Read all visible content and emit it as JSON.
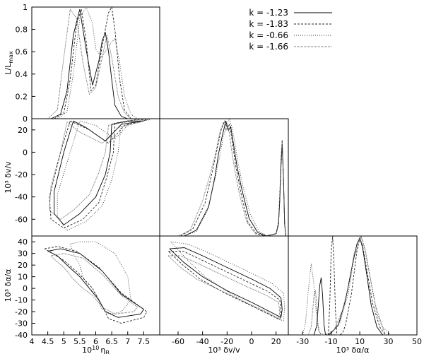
{
  "legend": {
    "items": [
      {
        "label": "k = -1.23",
        "color": "#000000",
        "dash": ""
      },
      {
        "label": "k = -1.83",
        "color": "#222222",
        "dash": "3,2"
      },
      {
        "label": "k = -0.66",
        "color": "#333333",
        "dash": "1,2"
      },
      {
        "label": "k = -1.66",
        "color": "#555555",
        "dash": "1,1"
      }
    ]
  },
  "chart_data": [
    {
      "id": "eta-1d",
      "type": "line",
      "xlabel": "",
      "ylabel": "L/L",
      "ylabel_sub": "max",
      "xlim": [
        4,
        8
      ],
      "ylim": [
        0,
        1
      ],
      "yticks": [
        "0",
        "0.2",
        "0.4",
        "0.6",
        "0.8",
        "1"
      ],
      "series": [
        {
          "name": "k = -1.23",
          "x": [
            4.6,
            4.9,
            5.1,
            5.3,
            5.5,
            5.7,
            5.9,
            6.1,
            6.2,
            6.3,
            6.4,
            6.5,
            6.6,
            6.8,
            7.0
          ],
          "y": [
            0,
            0.04,
            0.25,
            0.75,
            0.98,
            0.62,
            0.3,
            0.52,
            0.7,
            0.77,
            0.6,
            0.35,
            0.12,
            0.02,
            0
          ]
        },
        {
          "name": "k = -1.83",
          "x": [
            4.7,
            5.0,
            5.2,
            5.4,
            5.55,
            5.7,
            5.85,
            6.0,
            6.2,
            6.4,
            6.5,
            6.6,
            6.75,
            6.9,
            7.1
          ],
          "y": [
            0,
            0.05,
            0.35,
            0.85,
            0.98,
            0.7,
            0.25,
            0.3,
            0.65,
            0.95,
            1.0,
            0.8,
            0.35,
            0.08,
            0
          ]
        },
        {
          "name": "k = -0.66",
          "x": [
            4.8,
            5.1,
            5.3,
            5.5,
            5.7,
            5.9,
            6.0,
            6.2,
            6.4,
            6.6,
            6.75,
            6.9,
            7.1,
            7.3
          ],
          "y": [
            0,
            0.06,
            0.4,
            0.9,
            1.0,
            0.85,
            0.62,
            0.55,
            0.65,
            0.72,
            0.5,
            0.2,
            0.04,
            0
          ]
        },
        {
          "name": "k = -1.66",
          "x": [
            4.5,
            4.8,
            5.0,
            5.2,
            5.4,
            5.6,
            5.8,
            6.0,
            6.2,
            6.35,
            6.5,
            6.7,
            6.9,
            7.1
          ],
          "y": [
            0,
            0.08,
            0.55,
            0.98,
            0.9,
            0.5,
            0.22,
            0.28,
            0.55,
            0.75,
            0.55,
            0.2,
            0.05,
            0
          ]
        }
      ]
    },
    {
      "id": "dv-vs-eta",
      "type": "line",
      "xlabel": "",
      "ylabel": "10³ δv/v",
      "xlim": [
        4,
        8
      ],
      "ylim": [
        -75,
        30
      ],
      "yticks": [
        "20",
        "0",
        "-20",
        "-40",
        "-60"
      ],
      "series": [
        {
          "name": "k = -1.23",
          "x": [
            5.3,
            5.7,
            6.3,
            6.8,
            7.5,
            7.0,
            6.5,
            6.45,
            6.3,
            6.0,
            5.5,
            5.0,
            4.7,
            4.7,
            5.0,
            5.3
          ],
          "y": [
            28,
            22,
            10,
            25,
            28,
            28,
            25,
            0,
            -20,
            -40,
            -55,
            -65,
            -55,
            -35,
            0,
            28
          ]
        },
        {
          "name": "k = -1.83",
          "x": [
            5.2,
            5.8,
            6.4,
            6.9,
            7.6,
            7.2,
            6.6,
            6.55,
            6.35,
            6.1,
            5.6,
            5.0,
            4.6,
            4.55,
            4.9,
            5.2
          ],
          "y": [
            28,
            20,
            8,
            24,
            29,
            29,
            26,
            0,
            -22,
            -45,
            -60,
            -68,
            -60,
            -40,
            0,
            28
          ]
        },
        {
          "name": "k = -0.66",
          "x": [
            5.5,
            6.0,
            6.6,
            7.1,
            7.7,
            7.3,
            6.8,
            6.7,
            6.5,
            6.2,
            5.7,
            5.1,
            4.8,
            4.8,
            5.2,
            5.5
          ],
          "y": [
            28,
            24,
            12,
            27,
            29,
            29,
            26,
            0,
            -25,
            -48,
            -62,
            -70,
            -58,
            -38,
            0,
            28
          ]
        },
        {
          "name": "k = -1.66",
          "x": [
            5.1,
            5.5,
            6.2,
            6.7,
            7.4,
            6.9,
            6.4,
            6.3,
            6.1,
            5.8,
            5.3,
            4.9,
            4.55,
            4.6,
            4.9,
            5.1
          ],
          "y": [
            27,
            18,
            8,
            22,
            27,
            27,
            24,
            0,
            -18,
            -38,
            -52,
            -60,
            -52,
            -30,
            0,
            27
          ]
        }
      ]
    },
    {
      "id": "da-vs-eta",
      "type": "line",
      "xlabel": "10",
      "xlabel_sup": "10",
      "xlabel_greek": "η",
      "xlabel_sub": "B",
      "ylabel": "10³ δα/α",
      "xlim": [
        4,
        8
      ],
      "ylim": [
        -40,
        45
      ],
      "xticks": [
        "4",
        "4.5",
        "5",
        "5.5",
        "6",
        "6.5",
        "7",
        "7.5"
      ],
      "yticks": [
        "40",
        "30",
        "20",
        "10",
        "0",
        "-10",
        "-20",
        "-30",
        "-40"
      ],
      "series": [
        {
          "name": "k = -1.23",
          "x": [
            4.5,
            4.9,
            5.5,
            6.2,
            6.8,
            7.5,
            7.4,
            6.7,
            6.3,
            6.1,
            5.8,
            5.5,
            5.1,
            4.8,
            4.5
          ],
          "y": [
            32,
            34,
            30,
            15,
            -5,
            -18,
            -22,
            -25,
            -20,
            -10,
            0,
            10,
            20,
            28,
            32
          ]
        },
        {
          "name": "k = -1.83",
          "x": [
            4.4,
            4.8,
            5.4,
            6.1,
            6.8,
            7.6,
            7.5,
            6.8,
            6.4,
            6.2,
            5.9,
            5.5,
            5.0,
            4.6,
            4.4
          ],
          "y": [
            34,
            36,
            32,
            18,
            -4,
            -20,
            -25,
            -30,
            -26,
            -15,
            0,
            12,
            24,
            31,
            34
          ]
        },
        {
          "name": "k = -0.66",
          "x": [
            5.5,
            6.0,
            6.6,
            7.0,
            7.1,
            6.8,
            6.5,
            6.2,
            6.0,
            5.8,
            5.6,
            5.5,
            5.3,
            5.2,
            5.5
          ],
          "y": [
            40,
            40,
            30,
            10,
            -10,
            -20,
            -22,
            -18,
            -5,
            0,
            10,
            20,
            30,
            38,
            40
          ]
        },
        {
          "name": "k = -1.66",
          "x": [
            4.6,
            5.0,
            5.6,
            6.2,
            6.8,
            7.3,
            7.2,
            6.6,
            6.2,
            5.9,
            5.6,
            5.3,
            5.0,
            4.7,
            4.6
          ],
          "y": [
            28,
            30,
            26,
            12,
            -6,
            -16,
            -20,
            -22,
            -16,
            -6,
            0,
            8,
            18,
            25,
            28
          ]
        }
      ]
    },
    {
      "id": "dv-1d",
      "type": "line",
      "xlabel": "",
      "ylabel": "",
      "xlim": [
        -75,
        30
      ],
      "ylim": [
        0,
        1
      ],
      "series": [
        {
          "name": "k = -1.23",
          "x": [
            -55,
            -45,
            -35,
            -30,
            -27,
            -24,
            -21,
            -19,
            -17,
            -15,
            -12,
            -8,
            -2,
            5,
            12,
            20,
            22,
            23,
            24,
            25,
            26,
            27,
            28
          ],
          "y": [
            0,
            0.05,
            0.25,
            0.5,
            0.7,
            0.85,
            0.98,
            0.9,
            0.93,
            0.8,
            0.6,
            0.4,
            0.15,
            0.03,
            0,
            0.02,
            0.1,
            0.3,
            0.6,
            0.78,
            0.5,
            0.1,
            0
          ]
        },
        {
          "name": "k = -1.83",
          "x": [
            -58,
            -48,
            -38,
            -32,
            -28,
            -25,
            -22,
            -20,
            -18,
            -16,
            -13,
            -9,
            -3,
            4,
            12,
            20,
            22,
            23,
            24,
            25,
            26,
            27,
            28
          ],
          "y": [
            0,
            0.06,
            0.28,
            0.55,
            0.75,
            0.9,
            0.98,
            0.92,
            0.95,
            0.82,
            0.6,
            0.38,
            0.12,
            0.02,
            0,
            0.02,
            0.12,
            0.35,
            0.65,
            0.82,
            0.5,
            0.1,
            0
          ]
        },
        {
          "name": "k = -0.66",
          "x": [
            -55,
            -45,
            -36,
            -30,
            -26,
            -23,
            -20,
            -18,
            -16,
            -14,
            -11,
            -7,
            -1,
            6,
            13,
            20,
            22,
            23,
            24,
            25,
            26,
            27,
            28
          ],
          "y": [
            0,
            0.04,
            0.22,
            0.48,
            0.68,
            0.85,
            0.95,
            1.0,
            0.92,
            0.82,
            0.62,
            0.42,
            0.18,
            0.04,
            0,
            0.02,
            0.1,
            0.3,
            0.58,
            0.75,
            0.5,
            0.1,
            0
          ]
        },
        {
          "name": "k = -1.66",
          "x": [
            -60,
            -50,
            -40,
            -34,
            -29,
            -26,
            -23,
            -21,
            -19,
            -17,
            -14,
            -10,
            -4,
            3,
            11,
            20,
            22,
            23,
            24,
            25,
            26,
            27,
            28
          ],
          "y": [
            0,
            0.05,
            0.3,
            0.52,
            0.72,
            0.88,
            0.97,
            0.9,
            0.94,
            0.78,
            0.58,
            0.36,
            0.12,
            0.02,
            0,
            0.02,
            0.1,
            0.32,
            0.62,
            0.8,
            0.5,
            0.1,
            0
          ]
        }
      ]
    },
    {
      "id": "da-vs-dv",
      "type": "line",
      "xlabel": "10³ δv/v",
      "ylabel": "",
      "xlim": [
        -75,
        30
      ],
      "ylim": [
        -40,
        45
      ],
      "xticks": [
        "-60",
        "-40",
        "-20",
        "0",
        "20"
      ],
      "series": [
        {
          "name": "k = -1.23",
          "x": [
            -67,
            -55,
            -40,
            -20,
            0,
            15,
            24,
            25,
            24,
            15,
            0,
            -20,
            -40,
            -55,
            -67
          ],
          "y": [
            34,
            35,
            28,
            18,
            8,
            0,
            -8,
            -18,
            -25,
            -20,
            -12,
            -2,
            10,
            22,
            34
          ]
        },
        {
          "name": "k = -1.83",
          "x": [
            -68,
            -56,
            -42,
            -22,
            -2,
            14,
            23,
            24,
            23,
            14,
            -2,
            -22,
            -42,
            -56,
            -68
          ],
          "y": [
            32,
            32,
            25,
            15,
            5,
            -3,
            -10,
            -20,
            -27,
            -22,
            -14,
            -4,
            8,
            20,
            32
          ]
        },
        {
          "name": "k = -0.66",
          "x": [
            -66,
            -52,
            -38,
            -18,
            2,
            17,
            26,
            27,
            26,
            17,
            2,
            -18,
            -38,
            -52,
            -66
          ],
          "y": [
            40,
            38,
            32,
            22,
            12,
            4,
            -4,
            -16,
            -28,
            -24,
            -16,
            -4,
            10,
            24,
            40
          ]
        },
        {
          "name": "k = -1.66",
          "x": [
            -68,
            -58,
            -45,
            -25,
            -5,
            12,
            22,
            23,
            22,
            12,
            -5,
            -25,
            -45,
            -58,
            -68
          ],
          "y": [
            28,
            28,
            22,
            12,
            2,
            -6,
            -12,
            -20,
            -26,
            -20,
            -12,
            -2,
            8,
            18,
            28
          ]
        }
      ]
    },
    {
      "id": "da-1d",
      "type": "line",
      "xlabel": "10³ δα/α",
      "ylabel": "",
      "xlim": [
        -40,
        50
      ],
      "ylim": [
        0,
        1
      ],
      "xticks": [
        "-30",
        "-10",
        "10",
        "30",
        "50"
      ],
      "series": [
        {
          "name": "k = -1.23",
          "x": [
            -22,
            -20,
            -18,
            -17,
            -16,
            -15,
            -14,
            -12,
            -10,
            -5,
            0,
            5,
            8,
            10,
            12,
            15,
            18,
            22,
            26
          ],
          "y": [
            0,
            0.1,
            0.5,
            0.58,
            0.4,
            0.1,
            0,
            0,
            0.02,
            0.1,
            0.35,
            0.72,
            0.92,
            0.98,
            0.88,
            0.6,
            0.3,
            0.08,
            0
          ]
        },
        {
          "name": "k = -1.83",
          "x": [
            -12,
            -11,
            -10,
            -9,
            -8,
            -7,
            -6,
            -4,
            -2,
            0,
            4,
            8,
            10,
            12,
            15,
            19,
            24,
            28
          ],
          "y": [
            0,
            0.3,
            0.85,
            1.0,
            0.7,
            0.25,
            0,
            0,
            0.02,
            0.1,
            0.4,
            0.85,
            0.98,
            0.9,
            0.65,
            0.32,
            0.08,
            0
          ]
        },
        {
          "name": "k = -0.66",
          "x": [
            -30,
            -28,
            -26,
            -24,
            -22,
            -20,
            -18,
            -15,
            -10,
            -4,
            2,
            6,
            9,
            11,
            13,
            17,
            21,
            26,
            32
          ],
          "y": [
            0,
            0.12,
            0.45,
            0.72,
            0.5,
            0.15,
            0.02,
            0,
            0.02,
            0.12,
            0.42,
            0.78,
            0.92,
            0.98,
            0.9,
            0.6,
            0.3,
            0.08,
            0
          ]
        },
        {
          "name": "k = -1.66",
          "x": [
            -26,
            -24,
            -22,
            -21,
            -20,
            -19,
            -17,
            -14,
            -8,
            -2,
            3,
            6,
            9,
            11,
            14,
            18,
            22,
            28
          ],
          "y": [
            0,
            0.08,
            0.4,
            0.45,
            0.3,
            0.05,
            0,
            0,
            0.05,
            0.25,
            0.55,
            0.82,
            0.95,
            1.0,
            0.85,
            0.52,
            0.22,
            0
          ]
        }
      ]
    }
  ]
}
